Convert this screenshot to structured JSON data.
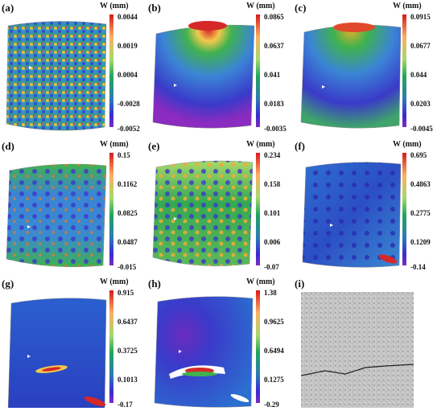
{
  "panels": [
    {
      "label": "(a)",
      "unit": "W (mm)",
      "ticks": [
        "0.0044",
        "0.0019",
        "0.0004",
        "-0.0028",
        "-0.0052"
      ],
      "style": "noise"
    },
    {
      "label": "(b)",
      "unit": "W (mm)",
      "ticks": [
        "0.0865",
        "0.0637",
        "0.041",
        "0.0183",
        "-0.0035"
      ],
      "style": "blue"
    },
    {
      "label": "(c)",
      "unit": "W (mm)",
      "ticks": [
        "0.0915",
        "0.0677",
        "0.044",
        "0.0203",
        "-0.0045"
      ],
      "style": "blue"
    },
    {
      "label": "(d)",
      "unit": "W (mm)",
      "ticks": [
        "0.15",
        "0.1162",
        "0.0825",
        "0.0487",
        "-0.015"
      ],
      "style": "mixed"
    },
    {
      "label": "(e)",
      "unit": "W (mm)",
      "ticks": [
        "0.234",
        "0.158",
        "0.101",
        "0.006",
        "-0.07"
      ],
      "style": "green"
    },
    {
      "label": "(f)",
      "unit": "W (mm)",
      "ticks": [
        "0.695",
        "0.4863",
        "0.2775",
        "0.1209",
        "-0.14"
      ],
      "style": "deepblue"
    },
    {
      "label": "(g)",
      "unit": "W (mm)",
      "ticks": [
        "0.915",
        "0.6437",
        "0.3725",
        "0.1013",
        "-0.17"
      ],
      "style": "deepblue"
    },
    {
      "label": "(h)",
      "unit": "W (mm)",
      "ticks": [
        "1.38",
        "0.9625",
        "0.6494",
        "0.1275",
        "-0.29"
      ],
      "style": "deepblue"
    }
  ],
  "photo_panel": {
    "label": "(i)"
  }
}
